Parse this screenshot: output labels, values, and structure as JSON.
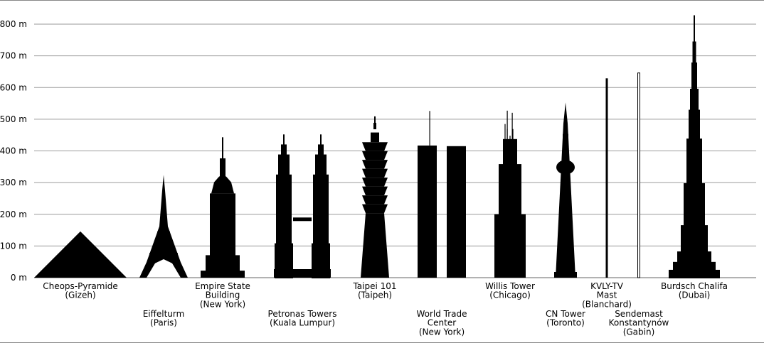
{
  "chart_data": {
    "type": "bar",
    "unit": "m",
    "ylim": [
      0,
      800
    ],
    "yticks": [
      0,
      100,
      200,
      300,
      400,
      500,
      600,
      700,
      800
    ],
    "tick_labels": [
      "0 m",
      "100 m",
      "200 m",
      "300 m",
      "400 m",
      "500 m",
      "600 m",
      "700 m",
      "800 m"
    ],
    "grid": true,
    "structures": [
      {
        "label": [
          "Cheops-Pyramide",
          "(Gizeh)"
        ],
        "height": 146,
        "shape": "pyramid"
      },
      {
        "label": [
          "Eiffelturm",
          "(Paris)"
        ],
        "height": 324,
        "shape": "eiffel"
      },
      {
        "label": [
          "Empire State",
          "Building",
          "(New York)"
        ],
        "height": 443,
        "shape": "empire"
      },
      {
        "label": [
          "Petronas Towers",
          "(Kuala Lumpur)"
        ],
        "height": 452,
        "shape": "petronas"
      },
      {
        "label": [
          "Taipei 101",
          "(Taipeh)"
        ],
        "height": 509,
        "shape": "taipei"
      },
      {
        "label": [
          "World Trade",
          "Center",
          "(New York)"
        ],
        "height": 526,
        "shape": "wtc"
      },
      {
        "label": [
          "Willis Tower",
          "(Chicago)"
        ],
        "height": 527,
        "shape": "willis"
      },
      {
        "label": [
          "CN Tower",
          "(Toronto)"
        ],
        "height": 553,
        "shape": "cn"
      },
      {
        "label": [
          "KVLY-TV",
          "Mast",
          "(Blanchard)"
        ],
        "height": 629,
        "shape": "mast"
      },
      {
        "label": [
          "Sendemast",
          "Konstantynów",
          "(Gabin)"
        ],
        "height": 646,
        "shape": "mast-outline"
      },
      {
        "label": [
          "Burdsch Chalifa",
          "(Dubai)"
        ],
        "height": 828,
        "shape": "burj"
      }
    ]
  }
}
